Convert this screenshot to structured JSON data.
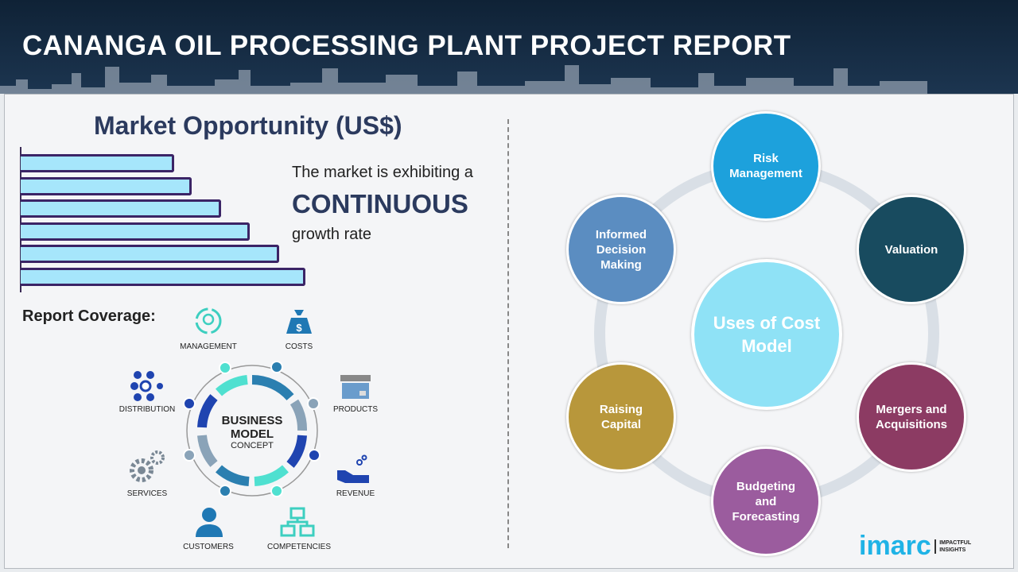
{
  "header": {
    "title": "CANANGA OIL PROCESSING PLANT PROJECT REPORT"
  },
  "market": {
    "title": "Market Opportunity (US$)",
    "line1": "The market is exhibiting a",
    "line2": "CONTINUOUS",
    "line3": "growth rate",
    "bar_values": [
      53,
      59,
      69,
      79,
      89,
      98
    ]
  },
  "coverage": {
    "title": "Report Coverage:",
    "center": [
      "BUSINESS",
      "MODEL",
      "CONCEPT"
    ],
    "items": [
      "MANAGEMENT",
      "COSTS",
      "PRODUCTS",
      "REVENUE",
      "COMPETENCIES",
      "CUSTOMERS",
      "SERVICES",
      "DISTRIBUTION"
    ]
  },
  "uses": {
    "center": "Uses of Cost Model",
    "nodes": [
      {
        "label": "Risk Management",
        "color": "#1da1dc"
      },
      {
        "label": "Valuation",
        "color": "#184b5f"
      },
      {
        "label": "Mergers and Acquisitions",
        "color": "#8c3b63"
      },
      {
        "label": "Budgeting and Forecasting",
        "color": "#9b5c9e"
      },
      {
        "label": "Raising Capital",
        "color": "#b8973b"
      },
      {
        "label": "Informed Decision Making",
        "color": "#5b8dc1"
      }
    ]
  },
  "logo": {
    "brand": "imarc",
    "tagline1": "IMPACTFUL",
    "tagline2": "INSIGHTS"
  },
  "colors": {
    "header": "#14293f",
    "bar_fill": "#a6e6fb",
    "bar_border": "#3b2466",
    "accent": "#2b3a5e"
  }
}
